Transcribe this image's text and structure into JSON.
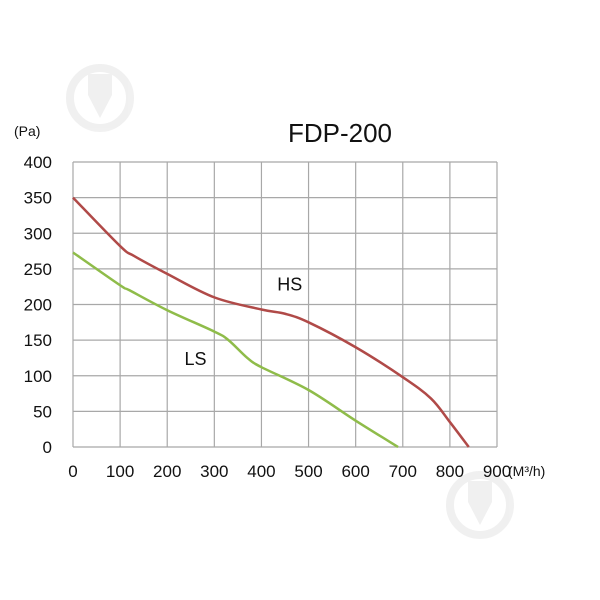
{
  "chart_data": {
    "type": "line",
    "title": "FDP-200",
    "ylabel": "(Pa)",
    "xlabel": "(M³/h)",
    "xlim": [
      0,
      900
    ],
    "ylim": [
      0,
      400
    ],
    "xticks": [
      0,
      100,
      200,
      300,
      400,
      500,
      600,
      700,
      800,
      900
    ],
    "yticks": [
      0,
      50,
      100,
      150,
      200,
      250,
      300,
      350,
      400
    ],
    "grid": true,
    "series": [
      {
        "name": "HS",
        "color": "#b04a48",
        "x": [
          0,
          100,
          130,
          200,
          300,
          400,
          450,
          500,
          600,
          700,
          760,
          800,
          840
        ],
        "y": [
          350,
          282,
          268,
          243,
          210,
          193,
          187,
          175,
          140,
          98,
          68,
          35,
          0
        ]
      },
      {
        "name": "LS",
        "color": "#8fbc4a",
        "x": [
          0,
          100,
          120,
          200,
          300,
          330,
          370,
          400,
          500,
          600,
          690
        ],
        "y": [
          273,
          227,
          220,
          192,
          162,
          150,
          125,
          112,
          80,
          37,
          0
        ]
      }
    ],
    "annotations": [
      {
        "text": "HS",
        "x": 460,
        "y": 220
      },
      {
        "text": "LS",
        "x": 260,
        "y": 115
      }
    ]
  }
}
